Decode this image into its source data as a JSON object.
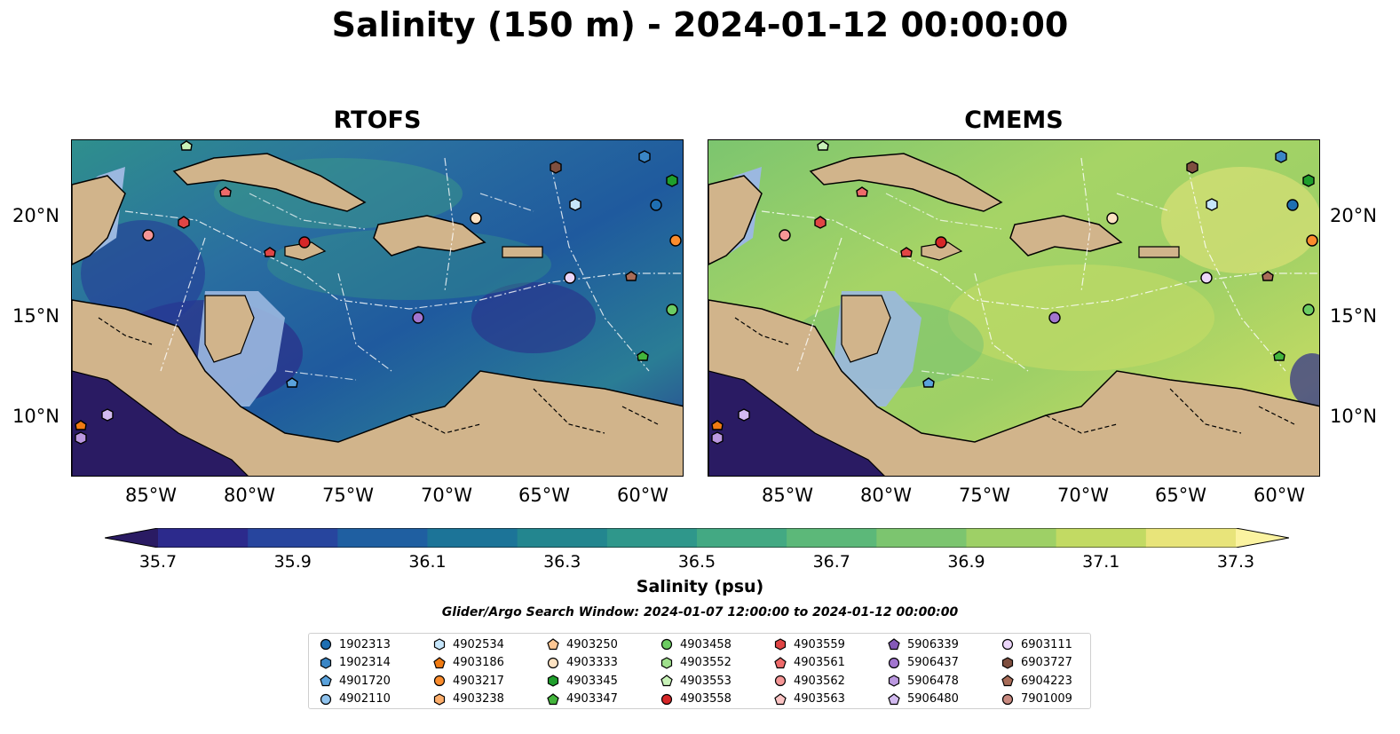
{
  "title": "Salinity (150 m) - 2024-01-12 00:00:00",
  "panels": [
    {
      "title": "RTOFS"
    },
    {
      "title": "CMEMS"
    }
  ],
  "axes": {
    "x_ticks": [
      "85°W",
      "80°W",
      "75°W",
      "70°W",
      "65°W",
      "60°W"
    ],
    "y_ticks": [
      "20°N",
      "15°N",
      "10°N"
    ]
  },
  "colorbar": {
    "label": "Salinity (psu)",
    "ticks": [
      "35.7",
      "35.9",
      "36.1",
      "36.3",
      "36.5",
      "36.7",
      "36.9",
      "37.1",
      "37.3"
    ],
    "colors": [
      "#2a1b63",
      "#2c2a8c",
      "#27459e",
      "#1f5fa1",
      "#1c7498",
      "#23868f",
      "#2f978b",
      "#43a983",
      "#5cb879",
      "#7cc56f",
      "#9ed066",
      "#c2da63",
      "#e8e47a",
      "#fbf3a0"
    ]
  },
  "search_window": "Glider/Argo Search Window: 2024-01-07 12:00:00 to 2024-01-12 00:00:00",
  "legend": {
    "columns": [
      [
        {
          "id": "1902313",
          "marker": "circle",
          "color": "#1f6fb2"
        },
        {
          "id": "1902314",
          "marker": "hexagon",
          "color": "#3a86c6"
        },
        {
          "id": "4901720",
          "marker": "pentagon",
          "color": "#5aa2dc"
        },
        {
          "id": "4902110",
          "marker": "circle",
          "color": "#8fc3ee"
        }
      ],
      [
        {
          "id": "4902534",
          "marker": "hexagon",
          "color": "#c6e6fb"
        },
        {
          "id": "4903186",
          "marker": "pentagon",
          "color": "#f07b12"
        },
        {
          "id": "4903217",
          "marker": "circle",
          "color": "#fb8c2c"
        },
        {
          "id": "4903238",
          "marker": "hexagon",
          "color": "#fdae6b"
        }
      ],
      [
        {
          "id": "4903250",
          "marker": "pentagon",
          "color": "#fdc794"
        },
        {
          "id": "4903333",
          "marker": "circle",
          "color": "#fde2c2"
        },
        {
          "id": "4903345",
          "marker": "hexagon",
          "color": "#1f9e2c"
        },
        {
          "id": "4903347",
          "marker": "pentagon",
          "color": "#43b53c"
        }
      ],
      [
        {
          "id": "4903458",
          "marker": "circle",
          "color": "#6ccc62"
        },
        {
          "id": "4903552",
          "marker": "hexagon",
          "color": "#9fe08c"
        },
        {
          "id": "4903553",
          "marker": "pentagon",
          "color": "#c8f2b8"
        },
        {
          "id": "4903558",
          "marker": "circle",
          "color": "#d62728"
        }
      ],
      [
        {
          "id": "4903559",
          "marker": "hexagon",
          "color": "#e04545"
        },
        {
          "id": "4903561",
          "marker": "pentagon",
          "color": "#ee6a6a"
        },
        {
          "id": "4903562",
          "marker": "circle",
          "color": "#f59696"
        },
        {
          "id": "4903563",
          "marker": "pentagon",
          "color": "#fbc4c4"
        }
      ],
      [
        {
          "id": "5906339",
          "marker": "pentagon",
          "color": "#8459b8"
        },
        {
          "id": "5906437",
          "marker": "circle",
          "color": "#a275cf"
        },
        {
          "id": "5906478",
          "marker": "hexagon",
          "color": "#bb98e0"
        },
        {
          "id": "5906480",
          "marker": "pentagon",
          "color": "#d2baf0"
        }
      ],
      [
        {
          "id": "6903111",
          "marker": "circle",
          "color": "#ecd6fa"
        },
        {
          "id": "6903727",
          "marker": "hexagon",
          "color": "#7f4f3f"
        },
        {
          "id": "6904223",
          "marker": "pentagon",
          "color": "#a86c58"
        },
        {
          "id": "7901009",
          "marker": "circle",
          "color": "#c98a80"
        }
      ]
    ]
  }
}
